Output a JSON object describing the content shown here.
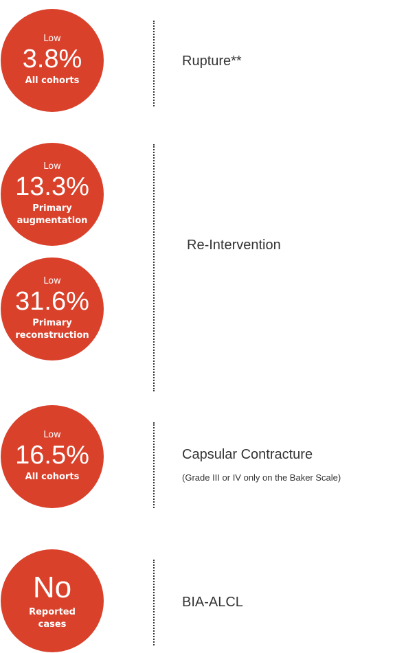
{
  "groups": [
    {
      "label": "Rupture**",
      "items": [
        {
          "qualifier": "Low",
          "value": "3.8%",
          "cohort": "All cohorts"
        }
      ]
    },
    {
      "label": "Re-Intervention",
      "items": [
        {
          "qualifier": "Low",
          "value": "13.3%",
          "cohort": "Primary augmentation"
        },
        {
          "qualifier": "Low",
          "value": "31.6%",
          "cohort": "Primary reconstruction"
        }
      ]
    },
    {
      "label": "Capsular Contracture",
      "note": "(Grade III or IV only on the Baker Scale)",
      "items": [
        {
          "qualifier": "Low",
          "value": "16.5%",
          "cohort": "All cohorts"
        }
      ]
    },
    {
      "label": "BIA-ALCL",
      "items": [
        {
          "value": "No",
          "cohort": "Reported cases"
        }
      ]
    }
  ]
}
